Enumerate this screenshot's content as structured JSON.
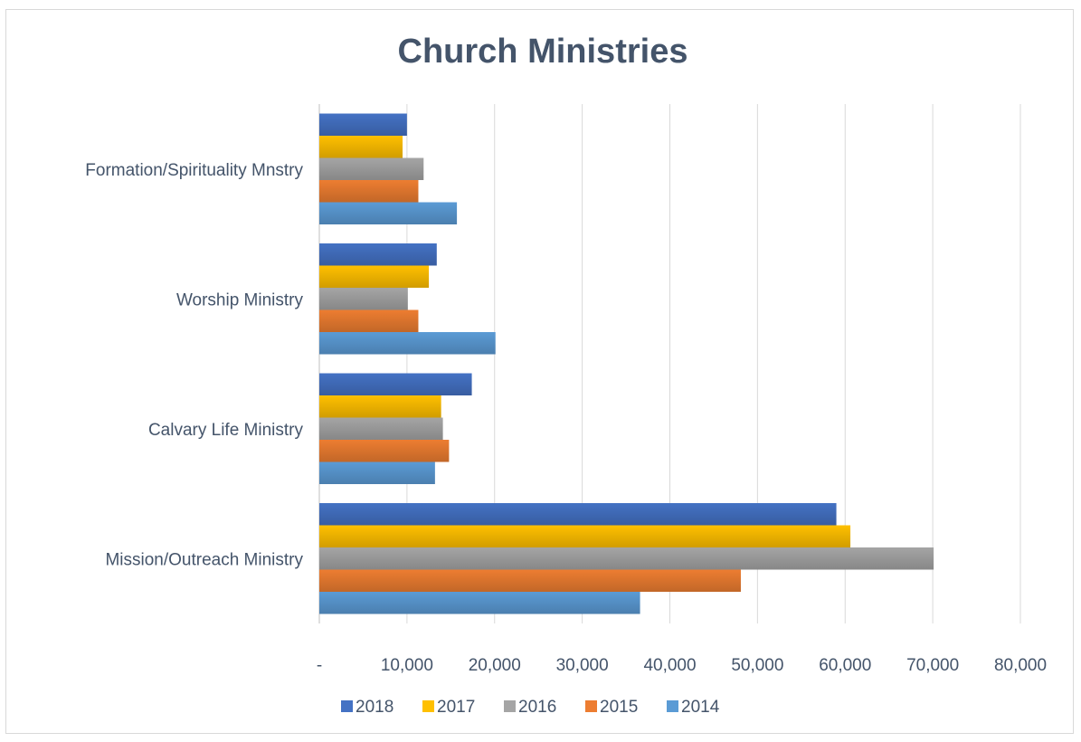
{
  "chart_data": {
    "type": "bar",
    "orientation": "horizontal",
    "title": "Church Ministries",
    "categories": [
      "Formation/Spirituality Mnstry",
      "Worship Ministry",
      "Calvary Life Ministry",
      "Mission/Outreach Ministry"
    ],
    "series": [
      {
        "name": "2018",
        "color": "#4472c4",
        "values": [
          10000,
          13400,
          17400,
          59000
        ]
      },
      {
        "name": "2017",
        "color": "#ffc000",
        "values": [
          9500,
          12500,
          13900,
          60600
        ]
      },
      {
        "name": "2016",
        "color": "#a5a5a5",
        "values": [
          11900,
          10100,
          14100,
          70100
        ]
      },
      {
        "name": "2015",
        "color": "#ed7d31",
        "values": [
          11300,
          11300,
          14800,
          48100
        ]
      },
      {
        "name": "2014",
        "color": "#5b9bd5",
        "values": [
          15700,
          20100,
          13200,
          36600
        ]
      }
    ],
    "xlim": [
      0,
      80000
    ],
    "xticks": [
      0,
      10000,
      20000,
      30000,
      40000,
      50000,
      60000,
      70000,
      80000
    ],
    "xtick_labels": [
      "-",
      "10,000",
      "20,000",
      "30,000",
      "40,000",
      "50,000",
      "60,000",
      "70,000",
      "80,000"
    ],
    "grid": "vertical",
    "legend_position": "bottom",
    "xlabel": "",
    "ylabel": ""
  }
}
